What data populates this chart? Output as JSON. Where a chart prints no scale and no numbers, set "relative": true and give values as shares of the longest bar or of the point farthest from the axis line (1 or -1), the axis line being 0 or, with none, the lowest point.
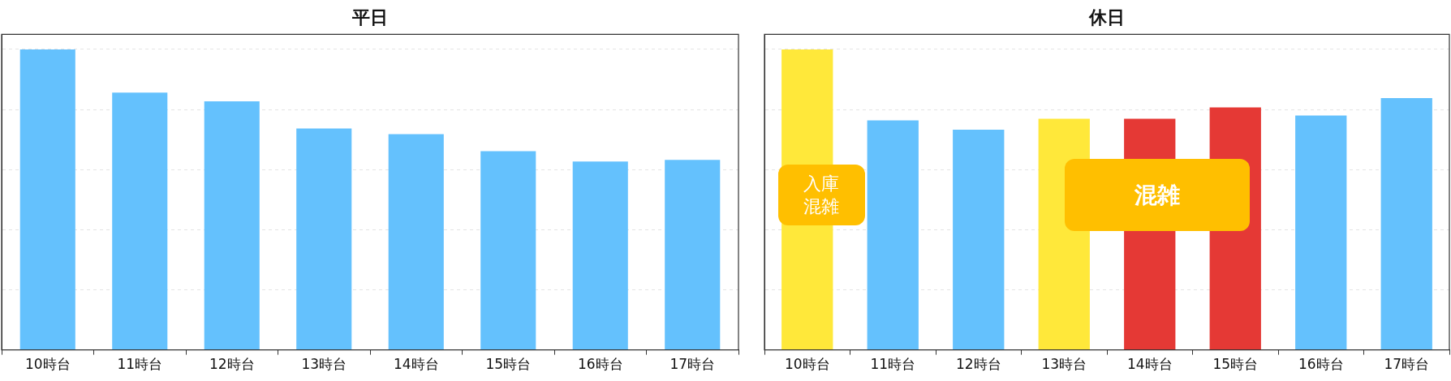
{
  "chart_data": [
    {
      "type": "bar",
      "title": "平日",
      "relative": true,
      "grid": "y",
      "legend": false,
      "categories": [
        "10時台",
        "11時台",
        "12時台",
        "13時台",
        "14時台",
        "15時台",
        "16時台",
        "17時台"
      ],
      "values": [
        1,
        0.856,
        0.827,
        0.737,
        0.718,
        0.661,
        0.627,
        0.632
      ],
      "colors": [
        "#64c1fd",
        "#64c1fd",
        "#64c1fd",
        "#64c1fd",
        "#64c1fd",
        "#64c1fd",
        "#64c1fd",
        "#64c1fd"
      ]
    },
    {
      "type": "bar",
      "title": "休日",
      "relative": true,
      "grid": "y",
      "legend": false,
      "categories": [
        "10時台",
        "11時台",
        "12時台",
        "13時台",
        "14時台",
        "15時台",
        "16時台",
        "17時台"
      ],
      "values": [
        1,
        0.764,
        0.733,
        0.769,
        0.769,
        0.807,
        0.78,
        0.838
      ],
      "colors": [
        "#ffe83a",
        "#64c1fd",
        "#64c1fd",
        "#ffe83a",
        "#e53935",
        "#e53935",
        "#64c1fd",
        "#64c1fd"
      ],
      "annotations": [
        "入庫混雑",
        "混雑"
      ]
    }
  ]
}
